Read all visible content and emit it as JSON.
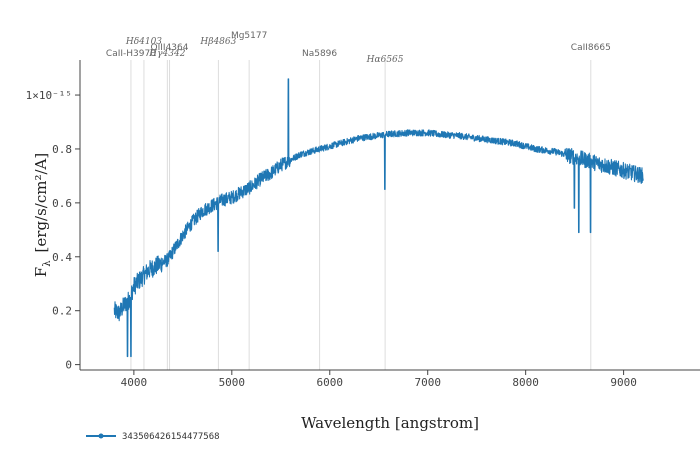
{
  "chart_data": {
    "type": "line",
    "xlabel": "Wavelength    [angstrom]",
    "ylabel": "F",
    "ylabel_sub": "λ",
    "ylabel_units": "[erg/s/cm²/A]",
    "xlim": [
      3450,
      9780
    ],
    "ylim": [
      -0.02,
      1.13
    ],
    "x_ticks": [
      4000,
      5000,
      6000,
      7000,
      8000,
      9000
    ],
    "x_tick_labels": [
      "4000",
      "5000",
      "6000",
      "7000",
      "8000",
      "9000"
    ],
    "y_ticks": [
      0,
      0.2,
      0.4,
      0.6,
      0.8,
      1.0
    ],
    "y_tick_labels": [
      "0",
      "0.2",
      "0.4",
      "0.6",
      "0.8",
      "1×10⁻¹⁵"
    ],
    "series": [
      {
        "name": "343506426154477568",
        "color": "#1f77b4",
        "x": [
          3800,
          3850,
          3900,
          3950,
          4000,
          4050,
          4100,
          4150,
          4200,
          4250,
          4300,
          4350,
          4400,
          4450,
          4500,
          4600,
          4700,
          4800,
          4900,
          5000,
          5100,
          5200,
          5300,
          5400,
          5500,
          5600,
          5700,
          5800,
          5900,
          6000,
          6100,
          6200,
          6300,
          6400,
          6500,
          6600,
          6700,
          6800,
          6900,
          7000,
          7100,
          7200,
          7300,
          7400,
          7500,
          7600,
          7700,
          7800,
          7900,
          8000,
          8100,
          8200,
          8300,
          8400,
          8500,
          8600,
          8700,
          8800,
          8900,
          9000,
          9100,
          9200
        ],
        "values": [
          0.2,
          0.19,
          0.22,
          0.24,
          0.29,
          0.31,
          0.33,
          0.35,
          0.36,
          0.37,
          0.38,
          0.39,
          0.42,
          0.45,
          0.48,
          0.53,
          0.57,
          0.59,
          0.61,
          0.62,
          0.64,
          0.66,
          0.69,
          0.71,
          0.74,
          0.76,
          0.78,
          0.79,
          0.8,
          0.81,
          0.82,
          0.83,
          0.84,
          0.845,
          0.85,
          0.855,
          0.857,
          0.86,
          0.86,
          0.86,
          0.855,
          0.852,
          0.85,
          0.845,
          0.84,
          0.835,
          0.83,
          0.825,
          0.82,
          0.81,
          0.8,
          0.795,
          0.79,
          0.78,
          0.77,
          0.76,
          0.75,
          0.74,
          0.73,
          0.72,
          0.71,
          0.7
        ]
      }
    ],
    "features": [
      {
        "wl": 5577,
        "peak": 1.06
      },
      {
        "wl": 6563,
        "dip": 0.65
      },
      {
        "wl": 4861,
        "dip": 0.42
      },
      {
        "wl": 3935,
        "dip": 0.03
      },
      {
        "wl": 3970,
        "dip": 0.03
      },
      {
        "wl": 8542,
        "dip": 0.49
      },
      {
        "wl": 8662,
        "dip": 0.49
      },
      {
        "wl": 8498,
        "dip": 0.58
      }
    ],
    "spectral_lines": [
      {
        "label": "CaII-H3970",
        "wl": 3970,
        "row": 2,
        "italic": false
      },
      {
        "label": "Hδ4103",
        "wl": 4103,
        "row": 0,
        "italic": true
      },
      {
        "label": "Hγ4342",
        "wl": 4342,
        "row": 2,
        "italic": true
      },
      {
        "label": "OIII4364",
        "wl": 4364,
        "row": 1,
        "italic": false
      },
      {
        "label": "Hβ4863",
        "wl": 4863,
        "row": 0,
        "italic": true
      },
      {
        "label": "Mg5177",
        "wl": 5177,
        "row": -1,
        "italic": false
      },
      {
        "label": "Na5896",
        "wl": 5896,
        "row": 2,
        "italic": false
      },
      {
        "label": "Hα6565",
        "wl": 6565,
        "row": 3,
        "italic": true
      },
      {
        "label": "CaII8665",
        "wl": 8665,
        "row": 1,
        "italic": false
      }
    ],
    "legend": "bottom-left",
    "grid": false
  }
}
